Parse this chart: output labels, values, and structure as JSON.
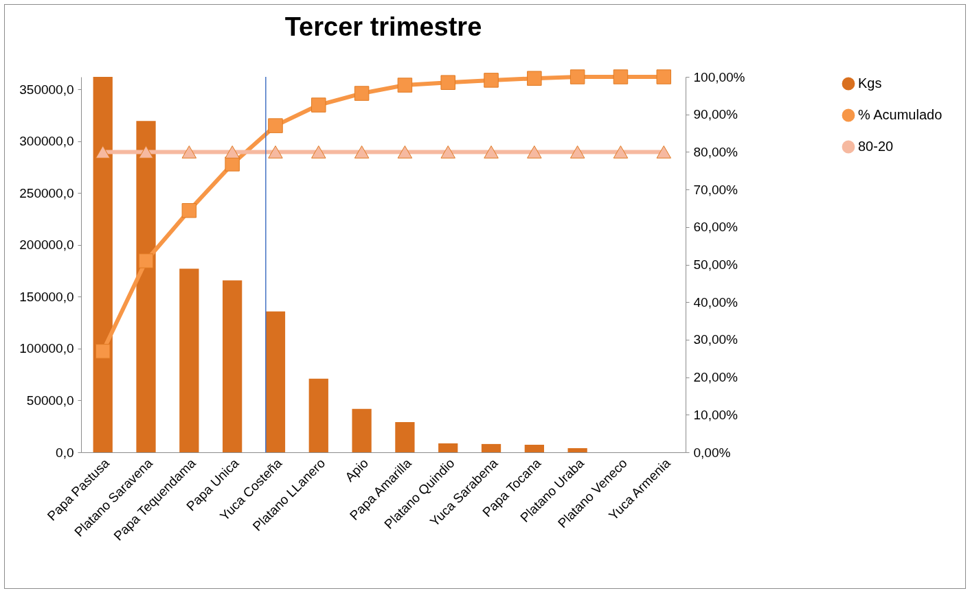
{
  "chart_data": {
    "type": "bar",
    "title": "Tercer trimestre",
    "categories": [
      "Papa Pastusa",
      "Platano Saravena",
      "Papa Tequendama",
      "Papa Unica",
      "Yuca Costeña",
      "Platano LLanero",
      "Apio",
      "Papa Amarilla",
      "Platano Quindio",
      "Yuca Sarabena",
      "Papa Tocana",
      "Platano Uraba",
      "Platano Veneco",
      "Yuca Armenia"
    ],
    "series": [
      {
        "name": "Kgs",
        "color": "#d9701f",
        "values": [
          362000,
          319500,
          177000,
          165700,
          135900,
          70900,
          41800,
          29200,
          8600,
          8000,
          7300,
          4000,
          0,
          0
        ]
      },
      {
        "name": "% Acumulado",
        "type": "line",
        "axis": "y2",
        "marker": "square",
        "color": "#f79646",
        "values": [
          26.9,
          51.0,
          64.4,
          76.8,
          87.0,
          92.5,
          95.6,
          97.8,
          98.5,
          99.1,
          99.6,
          100,
          100,
          100
        ]
      },
      {
        "name": "80-20",
        "type": "line",
        "axis": "y2",
        "marker": "triangle",
        "color": "#f6b9a0",
        "values": [
          80,
          80,
          80,
          80,
          80,
          80,
          80,
          80,
          80,
          80,
          80,
          80,
          80,
          80
        ]
      }
    ],
    "ylim": [
      0,
      362000
    ],
    "yticks": [
      {
        "value": 0,
        "label": "0,0"
      },
      {
        "value": 50000,
        "label": "50000,0"
      },
      {
        "value": 100000,
        "label": "100000,0"
      },
      {
        "value": 150000,
        "label": "150000,0"
      },
      {
        "value": 200000,
        "label": "200000,0"
      },
      {
        "value": 250000,
        "label": "250000,0"
      },
      {
        "value": 300000,
        "label": "300000,0"
      },
      {
        "value": 350000,
        "label": "350000,0"
      }
    ],
    "y2lim": [
      0,
      100
    ],
    "y2ticks": [
      {
        "value": 0,
        "label": "0,00%"
      },
      {
        "value": 10,
        "label": "10,00%"
      },
      {
        "value": 20,
        "label": "20,00%"
      },
      {
        "value": 30,
        "label": "30,00%"
      },
      {
        "value": 40,
        "label": "40,00%"
      },
      {
        "value": 50,
        "label": "50,00%"
      },
      {
        "value": 60,
        "label": "60,00%"
      },
      {
        "value": 70,
        "label": "70,00%"
      },
      {
        "value": 80,
        "label": "80,00%"
      },
      {
        "value": 90,
        "label": "90,00%"
      },
      {
        "value": 100,
        "label": "100,00%"
      }
    ],
    "ref_lines": [
      {
        "axis": "x",
        "value": "Yuca Costeña",
        "color": "#4472c4"
      }
    ],
    "grid": false,
    "legend": "right"
  }
}
